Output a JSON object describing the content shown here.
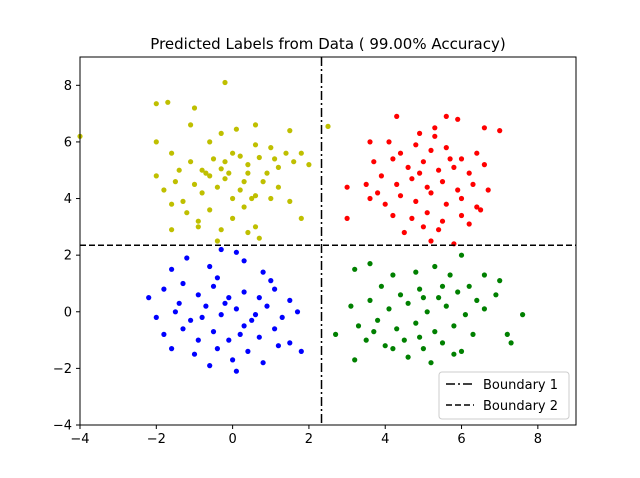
{
  "chart_data": {
    "type": "scatter",
    "title": "Predicted Labels from Data ( 99.00% Accuracy)",
    "xlabel": "",
    "ylabel": "",
    "xlim": [
      -4,
      9
    ],
    "ylim": [
      -4,
      9
    ],
    "xticks": [
      -4,
      -2,
      0,
      2,
      4,
      6,
      8
    ],
    "yticks": [
      -4,
      -2,
      0,
      2,
      4,
      6,
      8
    ],
    "xtick_labels": [
      "−4",
      "−2",
      "0",
      "2",
      "4",
      "6",
      "8"
    ],
    "ytick_labels": [
      "−4",
      "−2",
      "0",
      "2",
      "4",
      "6",
      "8"
    ],
    "grid": false,
    "legend_position": "lower-right",
    "boundaries": [
      {
        "name": "Boundary 1",
        "orientation": "vertical",
        "value": 2.33,
        "style": "dashdot",
        "color": "#000000"
      },
      {
        "name": "Boundary 2",
        "orientation": "horizontal",
        "value": 2.35,
        "style": "dashed",
        "color": "#000000"
      }
    ],
    "series": [
      {
        "color": "#bfbf00",
        "points": [
          [
            -2.0,
            7.35
          ],
          [
            -1.7,
            7.4
          ],
          [
            -0.2,
            8.1
          ],
          [
            -1.0,
            7.2
          ],
          [
            -4.0,
            6.2
          ],
          [
            2.5,
            6.55
          ],
          [
            -1.1,
            6.6
          ],
          [
            -0.3,
            6.3
          ],
          [
            0.1,
            6.45
          ],
          [
            0.6,
            6.6
          ],
          [
            1.5,
            6.4
          ],
          [
            -2.0,
            6.0
          ],
          [
            -1.6,
            5.6
          ],
          [
            -1.1,
            5.3
          ],
          [
            -0.8,
            5.0
          ],
          [
            -0.6,
            6.0
          ],
          [
            -0.5,
            5.4
          ],
          [
            -0.3,
            5.05
          ],
          [
            -0.1,
            4.9
          ],
          [
            0.0,
            5.6
          ],
          [
            0.2,
            5.5
          ],
          [
            0.4,
            5.2
          ],
          [
            0.6,
            5.9
          ],
          [
            0.7,
            5.45
          ],
          [
            0.9,
            4.9
          ],
          [
            1.0,
            5.8
          ],
          [
            1.2,
            5.1
          ],
          [
            1.4,
            5.6
          ],
          [
            1.6,
            5.3
          ],
          [
            1.8,
            5.6
          ],
          [
            2.0,
            5.2
          ],
          [
            -2.0,
            4.8
          ],
          [
            -1.8,
            4.3
          ],
          [
            -1.5,
            4.6
          ],
          [
            -1.3,
            3.9
          ],
          [
            -1.0,
            4.5
          ],
          [
            -0.8,
            4.2
          ],
          [
            -0.6,
            4.8
          ],
          [
            -0.4,
            4.4
          ],
          [
            -0.2,
            4.7
          ],
          [
            0.0,
            4.0
          ],
          [
            0.2,
            4.3
          ],
          [
            0.4,
            4.9
          ],
          [
            0.6,
            4.1
          ],
          [
            0.8,
            4.6
          ],
          [
            1.0,
            4.0
          ],
          [
            1.2,
            4.4
          ],
          [
            1.5,
            3.9
          ],
          [
            1.8,
            3.3
          ],
          [
            -1.6,
            3.8
          ],
          [
            -1.2,
            3.5
          ],
          [
            -0.9,
            3.2
          ],
          [
            -0.6,
            3.6
          ],
          [
            -0.3,
            2.9
          ],
          [
            0.0,
            3.3
          ],
          [
            0.3,
            3.7
          ],
          [
            0.6,
            3.0
          ],
          [
            -1.6,
            2.9
          ],
          [
            -0.9,
            3.0
          ],
          [
            -0.4,
            2.5
          ],
          [
            0.4,
            2.8
          ],
          [
            0.7,
            2.6
          ],
          [
            -0.7,
            4.9
          ],
          [
            0.3,
            4.6
          ],
          [
            1.1,
            5.4
          ],
          [
            -0.2,
            5.3
          ],
          [
            0.5,
            4.0
          ],
          [
            -1.4,
            5.0
          ]
        ]
      },
      {
        "color": "#ff0000",
        "points": [
          [
            4.3,
            6.9
          ],
          [
            5.6,
            6.9
          ],
          [
            5.9,
            6.8
          ],
          [
            6.6,
            6.5
          ],
          [
            7.0,
            6.4
          ],
          [
            4.9,
            6.3
          ],
          [
            5.3,
            6.2
          ],
          [
            3.6,
            6.0
          ],
          [
            4.1,
            6.0
          ],
          [
            4.8,
            5.9
          ],
          [
            5.2,
            5.7
          ],
          [
            5.6,
            5.8
          ],
          [
            6.0,
            5.4
          ],
          [
            6.4,
            5.6
          ],
          [
            3.7,
            5.3
          ],
          [
            4.2,
            5.4
          ],
          [
            4.6,
            5.1
          ],
          [
            5.0,
            5.3
          ],
          [
            5.4,
            5.0
          ],
          [
            5.8,
            5.1
          ],
          [
            6.2,
            4.9
          ],
          [
            6.6,
            5.2
          ],
          [
            3.0,
            4.4
          ],
          [
            3.5,
            4.5
          ],
          [
            3.9,
            4.8
          ],
          [
            4.3,
            4.5
          ],
          [
            4.7,
            4.7
          ],
          [
            5.1,
            4.4
          ],
          [
            5.5,
            4.6
          ],
          [
            5.9,
            4.3
          ],
          [
            6.3,
            4.5
          ],
          [
            6.7,
            4.3
          ],
          [
            3.6,
            4.0
          ],
          [
            4.0,
            3.8
          ],
          [
            4.4,
            4.1
          ],
          [
            4.8,
            3.9
          ],
          [
            5.2,
            4.2
          ],
          [
            5.6,
            3.8
          ],
          [
            6.0,
            4.0
          ],
          [
            6.4,
            3.7
          ],
          [
            3.0,
            3.3
          ],
          [
            4.2,
            3.4
          ],
          [
            4.7,
            3.3
          ],
          [
            5.1,
            3.5
          ],
          [
            5.5,
            3.2
          ],
          [
            6.0,
            3.4
          ],
          [
            6.5,
            3.6
          ],
          [
            4.5,
            2.8
          ],
          [
            5.0,
            3.0
          ],
          [
            5.4,
            2.9
          ],
          [
            6.2,
            3.1
          ],
          [
            5.2,
            2.5
          ],
          [
            5.8,
            2.4
          ],
          [
            3.8,
            4.2
          ],
          [
            4.9,
            4.9
          ],
          [
            5.7,
            5.4
          ],
          [
            4.4,
            5.6
          ],
          [
            5.3,
            6.5
          ]
        ]
      },
      {
        "color": "#0000ff",
        "points": [
          [
            -1.2,
            1.9
          ],
          [
            -0.3,
            2.2
          ],
          [
            0.1,
            2.1
          ],
          [
            0.3,
            1.8
          ],
          [
            -1.6,
            1.5
          ],
          [
            -0.6,
            1.6
          ],
          [
            0.8,
            1.4
          ],
          [
            -2.2,
            0.5
          ],
          [
            -1.8,
            0.8
          ],
          [
            -1.3,
            1.0
          ],
          [
            -0.9,
            0.6
          ],
          [
            -0.5,
            0.9
          ],
          [
            -0.1,
            0.5
          ],
          [
            0.3,
            0.7
          ],
          [
            0.7,
            0.5
          ],
          [
            1.1,
            0.8
          ],
          [
            1.5,
            0.4
          ],
          [
            -2.0,
            -0.2
          ],
          [
            -1.5,
            0.0
          ],
          [
            -1.1,
            -0.3
          ],
          [
            -0.7,
            0.2
          ],
          [
            -0.3,
            -0.1
          ],
          [
            0.1,
            0.1
          ],
          [
            0.5,
            -0.3
          ],
          [
            0.9,
            0.2
          ],
          [
            1.3,
            -0.2
          ],
          [
            1.7,
            0.0
          ],
          [
            -1.8,
            -0.8
          ],
          [
            -1.3,
            -0.6
          ],
          [
            -0.9,
            -1.0
          ],
          [
            -0.5,
            -0.7
          ],
          [
            -0.1,
            -1.0
          ],
          [
            0.3,
            -0.5
          ],
          [
            0.7,
            -0.9
          ],
          [
            1.1,
            -0.6
          ],
          [
            1.5,
            -1.1
          ],
          [
            -1.6,
            -1.3
          ],
          [
            -1.0,
            -1.5
          ],
          [
            -0.4,
            -1.3
          ],
          [
            0.0,
            -1.7
          ],
          [
            0.4,
            -1.4
          ],
          [
            0.8,
            -1.8
          ],
          [
            1.2,
            -1.2
          ],
          [
            0.1,
            -2.1
          ],
          [
            -0.6,
            -1.9
          ],
          [
            1.8,
            -1.4
          ],
          [
            -0.2,
            0.3
          ],
          [
            0.6,
            -0.1
          ],
          [
            -0.8,
            -0.2
          ],
          [
            0.2,
            -0.8
          ],
          [
            -1.4,
            0.3
          ],
          [
            1.0,
            1.1
          ],
          [
            -0.4,
            1.2
          ]
        ]
      },
      {
        "color": "#008000",
        "points": [
          [
            6.0,
            2.0
          ],
          [
            5.3,
            1.6
          ],
          [
            4.8,
            1.4
          ],
          [
            3.6,
            1.7
          ],
          [
            3.2,
            1.5
          ],
          [
            4.2,
            1.3
          ],
          [
            5.7,
            1.3
          ],
          [
            6.6,
            1.3
          ],
          [
            7.0,
            1.1
          ],
          [
            3.9,
            0.9
          ],
          [
            4.4,
            0.6
          ],
          [
            4.9,
            0.8
          ],
          [
            5.4,
            0.5
          ],
          [
            5.9,
            0.7
          ],
          [
            6.4,
            0.4
          ],
          [
            6.9,
            0.6
          ],
          [
            3.1,
            0.2
          ],
          [
            3.6,
            0.4
          ],
          [
            4.1,
            0.1
          ],
          [
            4.6,
            0.3
          ],
          [
            5.1,
            0.0
          ],
          [
            5.6,
            0.2
          ],
          [
            6.1,
            -0.1
          ],
          [
            6.6,
            0.1
          ],
          [
            7.6,
            -0.1
          ],
          [
            3.3,
            -0.5
          ],
          [
            3.8,
            -0.3
          ],
          [
            4.3,
            -0.6
          ],
          [
            4.8,
            -0.4
          ],
          [
            5.3,
            -0.7
          ],
          [
            5.8,
            -0.5
          ],
          [
            6.3,
            -0.8
          ],
          [
            2.7,
            -0.8
          ],
          [
            3.5,
            -1.0
          ],
          [
            4.0,
            -1.2
          ],
          [
            4.5,
            -1.0
          ],
          [
            5.0,
            -1.3
          ],
          [
            5.5,
            -1.1
          ],
          [
            6.0,
            -1.4
          ],
          [
            7.2,
            -0.8
          ],
          [
            7.3,
            -1.1
          ],
          [
            3.2,
            -1.7
          ],
          [
            4.6,
            -1.6
          ],
          [
            5.2,
            -1.8
          ],
          [
            5.8,
            -1.5
          ],
          [
            4.9,
            -0.9
          ],
          [
            5.5,
            0.9
          ],
          [
            4.2,
            -1.3
          ],
          [
            6.2,
            0.9
          ],
          [
            3.7,
            -0.7
          ],
          [
            5.0,
            0.5
          ]
        ]
      }
    ],
    "legend": [
      {
        "label": "Boundary 1",
        "style": "dashdot"
      },
      {
        "label": "Boundary 2",
        "style": "dashed"
      }
    ]
  }
}
